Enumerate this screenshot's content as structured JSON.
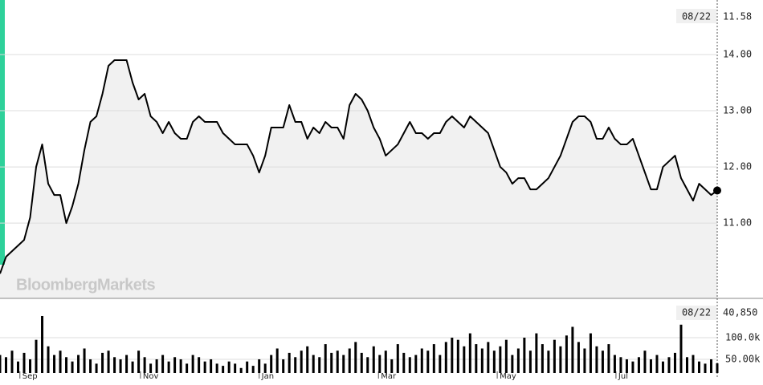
{
  "chart_data": [
    {
      "type": "line",
      "watermark": "BloombergMarkets",
      "color": "#000000",
      "last_date": "08/22",
      "last_value_label": "11.58",
      "x": [
        0,
        1,
        2,
        3,
        4,
        5,
        6,
        7,
        8,
        9,
        10,
        11,
        12,
        13,
        14,
        15,
        16,
        17,
        18,
        19,
        20,
        21,
        22,
        23,
        24,
        25,
        26,
        27,
        28,
        29,
        30,
        31,
        32,
        33,
        34,
        35,
        36,
        37,
        38,
        39,
        40,
        41,
        42,
        43,
        44,
        45,
        46,
        47,
        48,
        49,
        50,
        51,
        52,
        53,
        54,
        55,
        56,
        57,
        58,
        59,
        60,
        61,
        62,
        63,
        64,
        65,
        66,
        67,
        68,
        69,
        70,
        71,
        72,
        73,
        74,
        75,
        76,
        77,
        78,
        79,
        80,
        81,
        82,
        83,
        84,
        85,
        86,
        87,
        88,
        89,
        90,
        91,
        92,
        93,
        94,
        95,
        96,
        97,
        98,
        99,
        100,
        101,
        102,
        103,
        104,
        105,
        106,
        107,
        108,
        109,
        110,
        111,
        112,
        113,
        114,
        115,
        116,
        117,
        118,
        119
      ],
      "values": [
        10.1,
        10.4,
        10.5,
        10.6,
        10.7,
        11.1,
        12.0,
        12.4,
        11.7,
        11.5,
        11.5,
        11.0,
        11.3,
        11.7,
        12.3,
        12.8,
        12.9,
        13.3,
        13.8,
        13.9,
        13.9,
        13.9,
        13.5,
        13.2,
        13.3,
        12.9,
        12.8,
        12.6,
        12.8,
        12.6,
        12.5,
        12.5,
        12.8,
        12.9,
        12.8,
        12.8,
        12.8,
        12.6,
        12.5,
        12.4,
        12.4,
        12.4,
        12.2,
        11.9,
        12.2,
        12.7,
        12.7,
        12.7,
        13.1,
        12.8,
        12.8,
        12.5,
        12.7,
        12.6,
        12.8,
        12.7,
        12.7,
        12.5,
        13.1,
        13.3,
        13.2,
        13.0,
        12.7,
        12.5,
        12.2,
        12.3,
        12.4,
        12.6,
        12.8,
        12.6,
        12.6,
        12.5,
        12.6,
        12.6,
        12.8,
        12.9,
        12.8,
        12.7,
        12.9,
        12.8,
        12.7,
        12.6,
        12.3,
        12.0,
        11.9,
        11.7,
        11.8,
        11.8,
        11.6,
        11.6,
        11.7,
        11.8,
        12.0,
        12.2,
        12.5,
        12.8,
        12.9,
        12.9,
        12.8,
        12.5,
        12.5,
        12.7,
        12.5,
        12.4,
        12.4,
        12.5,
        12.2,
        11.9,
        11.6,
        11.6,
        12.0,
        12.1,
        12.2,
        11.8,
        11.6,
        11.4,
        11.7,
        11.6,
        11.5,
        11.58
      ],
      "xlim": [
        0,
        119
      ],
      "xticks": [
        {
          "value": 3.3,
          "label": "Sep"
        },
        {
          "value": 23.3,
          "label": "Nov"
        },
        {
          "value": 43,
          "label": "Jan"
        },
        {
          "value": 62.8,
          "label": "Mar"
        },
        {
          "value": 82.5,
          "label": "May"
        },
        {
          "value": 102.2,
          "label": "Jul"
        }
      ],
      "ylim": [
        9.66,
        14.97
      ],
      "yticks": [
        {
          "value": 11,
          "label": "11.00"
        },
        {
          "value": 12,
          "label": "12.00"
        },
        {
          "value": 13,
          "label": "13.00"
        },
        {
          "value": 14,
          "label": "14.00"
        }
      ],
      "grid": true
    },
    {
      "type": "bar",
      "color": "#000000",
      "last_date": "08/22",
      "last_value_label": "40,850",
      "values": [
        60000,
        55000,
        70000,
        45000,
        65000,
        50000,
        95000,
        150000,
        80000,
        60000,
        70000,
        55000,
        45000,
        60000,
        75000,
        50000,
        40000,
        65000,
        70000,
        55000,
        50000,
        60000,
        45000,
        70000,
        55000,
        40000,
        50000,
        60000,
        45000,
        55000,
        50000,
        40000,
        60000,
        55000,
        45000,
        50000,
        40000,
        35000,
        45000,
        40000,
        30000,
        45000,
        35000,
        50000,
        40000,
        60000,
        75000,
        50000,
        65000,
        55000,
        70000,
        80000,
        60000,
        55000,
        85000,
        65000,
        70000,
        60000,
        75000,
        90000,
        65000,
        55000,
        80000,
        60000,
        70000,
        50000,
        85000,
        65000,
        55000,
        60000,
        75000,
        70000,
        85000,
        60000,
        90000,
        100000,
        95000,
        80000,
        110000,
        85000,
        75000,
        90000,
        70000,
        80000,
        95000,
        60000,
        75000,
        100000,
        70000,
        110000,
        85000,
        70000,
        95000,
        80000,
        105000,
        125000,
        90000,
        75000,
        110000,
        80000,
        70000,
        85000,
        60000,
        55000,
        50000,
        45000,
        55000,
        70000,
        50000,
        60000,
        45000,
        55000,
        65000,
        130000,
        55000,
        60000,
        45000,
        40000,
        50000,
        40850
      ],
      "ylim": [
        18500,
        190700
      ],
      "yticks": [
        {
          "value": 50000,
          "label": "50.00k"
        },
        {
          "value": 100000,
          "label": "100.0k"
        }
      ],
      "grid": true
    }
  ]
}
